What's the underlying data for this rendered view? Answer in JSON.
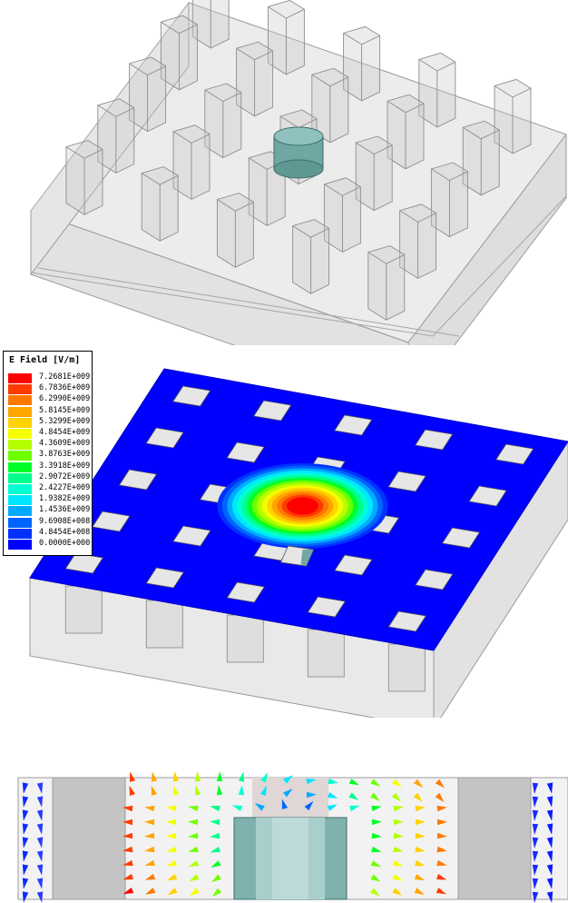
{
  "legend": {
    "title": "E Field [V/m]",
    "entries": [
      {
        "value": "7.2681E+009",
        "color": "#ff0000"
      },
      {
        "value": "6.7836E+009",
        "color": "#ff3c00"
      },
      {
        "value": "6.2990E+009",
        "color": "#ff7800"
      },
      {
        "value": "5.8145E+009",
        "color": "#ffa500"
      },
      {
        "value": "5.3299E+009",
        "color": "#ffd200"
      },
      {
        "value": "4.8454E+009",
        "color": "#f5ff00"
      },
      {
        "value": "4.3609E+009",
        "color": "#b4ff00"
      },
      {
        "value": "3.8763E+009",
        "color": "#6eff00"
      },
      {
        "value": "3.3918E+009",
        "color": "#00ff28"
      },
      {
        "value": "2.9072E+009",
        "color": "#00ff8c"
      },
      {
        "value": "2.4227E+009",
        "color": "#00ffd2"
      },
      {
        "value": "1.9382E+009",
        "color": "#00e6ff"
      },
      {
        "value": "1.4536E+009",
        "color": "#00aaff"
      },
      {
        "value": "9.6908E+008",
        "color": "#0064ff"
      },
      {
        "value": "4.8454E+008",
        "color": "#0032ff"
      },
      {
        "value": "0.0000E+000",
        "color": "#0000ff"
      }
    ]
  },
  "colors": {
    "substrate_edge": "#9a9a9a",
    "substrate_fill": "#e9e9e9",
    "cylinder": "#6fa7a3",
    "field_base": "#0000ff"
  }
}
